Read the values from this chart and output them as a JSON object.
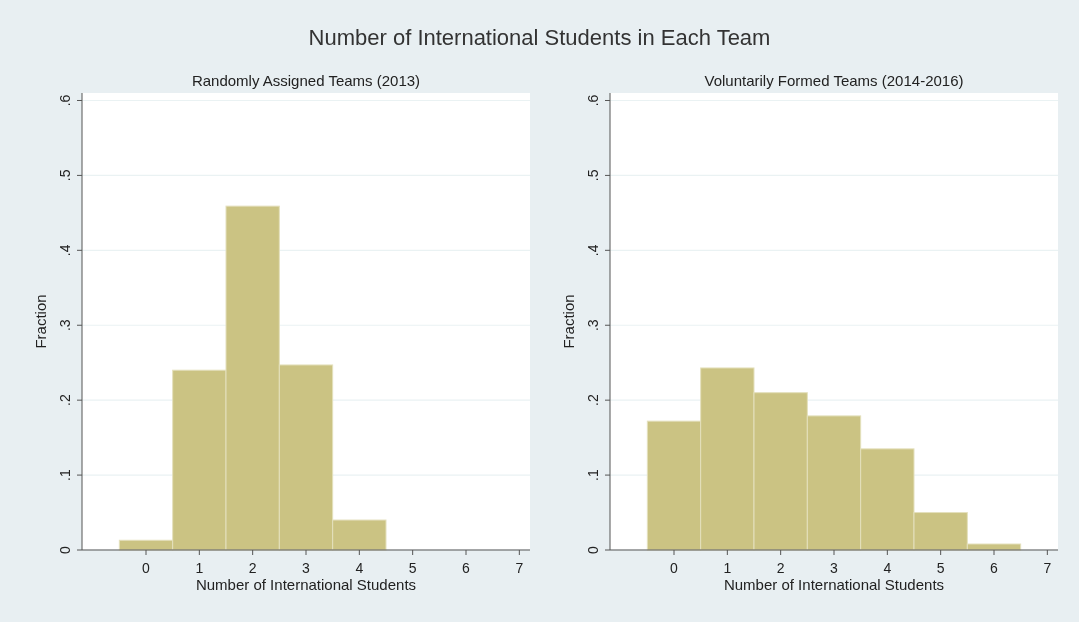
{
  "chart_data": [
    {
      "type": "histogram",
      "title": "Number of International Students in Each Team",
      "subtitle": "Randomly Assigned Teams (2013)",
      "xlabel": "Number of International Students",
      "ylabel": "Fraction",
      "bins": [
        -0.5,
        0.5,
        1.5,
        2.5,
        3.5,
        4.5
      ],
      "values": [
        0.013,
        0.24,
        0.459,
        0.247,
        0.04
      ],
      "color": "#cbc383",
      "xlim": [
        -1.2,
        7.2
      ],
      "xticks": [
        0,
        1,
        2,
        3,
        4,
        5,
        6,
        7
      ],
      "ylim": [
        0,
        0.61
      ],
      "yticks": [
        {
          "value": 0,
          "label": "0"
        },
        {
          "value": 0.1,
          "label": ".1"
        },
        {
          "value": 0.2,
          "label": ".2"
        },
        {
          "value": 0.3,
          "label": ".3"
        },
        {
          "value": 0.4,
          "label": ".4"
        },
        {
          "value": 0.5,
          "label": ".5"
        },
        {
          "value": 0.6,
          "label": ".6"
        }
      ],
      "grid": "y"
    },
    {
      "type": "histogram",
      "subtitle": "Voluntarily Formed Teams (2014-2016)",
      "xlabel": "Number of International Students",
      "ylabel": "Fraction",
      "bins": [
        -0.5,
        0.5,
        1.5,
        2.5,
        3.5,
        4.5,
        5.5,
        6.5
      ],
      "values": [
        0.172,
        0.243,
        0.21,
        0.179,
        0.135,
        0.05,
        0.008
      ],
      "color": "#cbc383",
      "xlim": [
        -1.2,
        7.2
      ],
      "xticks": [
        0,
        1,
        2,
        3,
        4,
        5,
        6,
        7
      ],
      "ylim": [
        0,
        0.61
      ],
      "yticks": [
        {
          "value": 0,
          "label": "0"
        },
        {
          "value": 0.1,
          "label": ".1"
        },
        {
          "value": 0.2,
          "label": ".2"
        },
        {
          "value": 0.3,
          "label": ".3"
        },
        {
          "value": 0.4,
          "label": ".4"
        },
        {
          "value": 0.5,
          "label": ".5"
        },
        {
          "value": 0.6,
          "label": ".6"
        }
      ],
      "grid": "y"
    }
  ]
}
